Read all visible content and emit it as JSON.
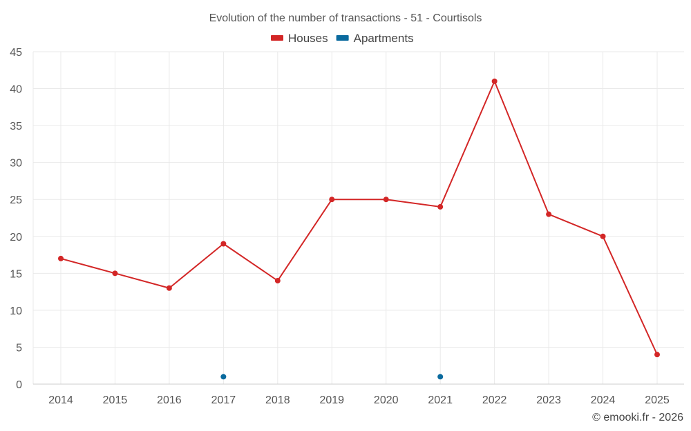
{
  "chart_data": {
    "type": "line",
    "title": "Evolution of the number of transactions - 51 - Courtisols",
    "categories": [
      "2014",
      "2015",
      "2016",
      "2017",
      "2018",
      "2019",
      "2020",
      "2021",
      "2022",
      "2023",
      "2024",
      "2025"
    ],
    "series": [
      {
        "name": "Houses",
        "color": "#d32626",
        "values": [
          17,
          15,
          13,
          19,
          14,
          25,
          25,
          24,
          41,
          23,
          20,
          4
        ]
      },
      {
        "name": "Apartments",
        "color": "#0a6a9e",
        "values": [
          null,
          null,
          null,
          1,
          null,
          null,
          null,
          1,
          null,
          null,
          null,
          null
        ]
      }
    ],
    "y_ticks": [
      0,
      5,
      10,
      15,
      20,
      25,
      30,
      35,
      40,
      45
    ],
    "ylim": [
      0,
      45
    ],
    "grid": true,
    "legend_position": "top-center",
    "credit": "© emooki.fr - 2026"
  }
}
